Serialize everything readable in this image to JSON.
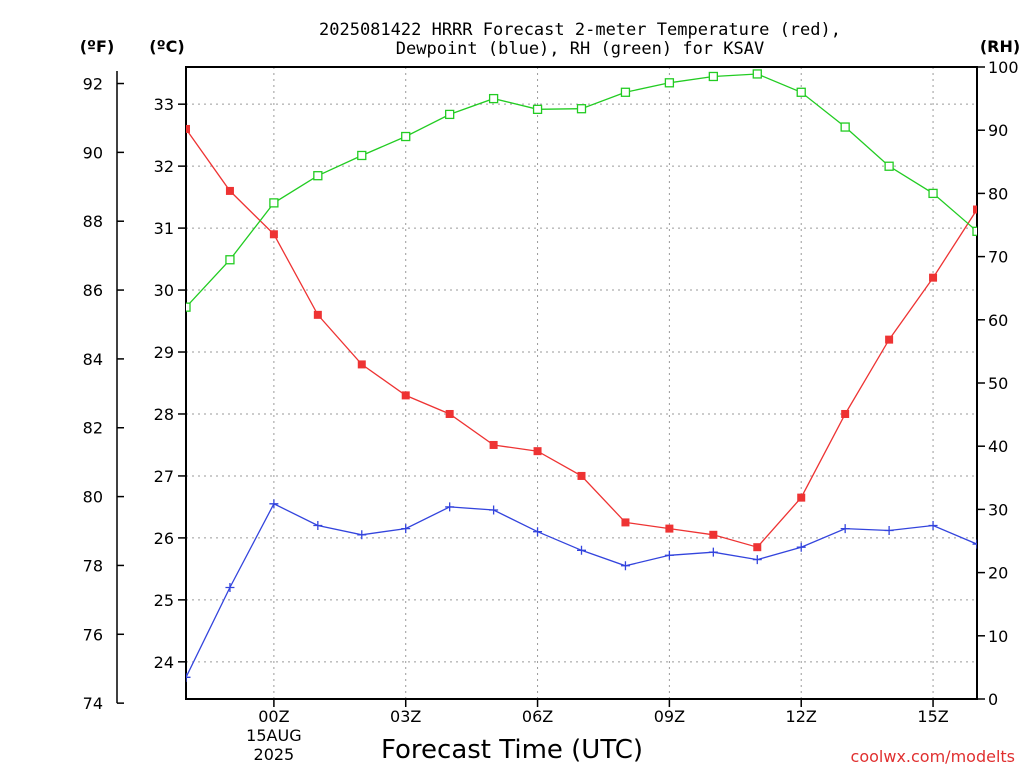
{
  "title_line1": "2025081422 HRRR Forecast 2-meter Temperature (red),",
  "title_line2": "Dewpoint (blue), RH (green) for KSAV",
  "unit_f": "(ºF)",
  "unit_c": "(ºC)",
  "unit_rh": "(RH)",
  "credit": "coolwx.com/modelts",
  "chart_data": {
    "type": "line",
    "title": "2025081422 HRRR Forecast 2-meter Temperature (red), Dewpoint (blue), RH (green) for KSAV",
    "xlabel": "Forecast Time (UTC)",
    "x": [
      -2,
      -1,
      0,
      1,
      2,
      3,
      4,
      5,
      6,
      7,
      8,
      9,
      10,
      11,
      12,
      13,
      14,
      15,
      16
    ],
    "x_ticks": [
      {
        "x": 0,
        "label": "00Z",
        "sub1": "15AUG",
        "sub2": "2025"
      },
      {
        "x": 3,
        "label": "03Z"
      },
      {
        "x": 6,
        "label": "06Z"
      },
      {
        "x": 9,
        "label": "09Z"
      },
      {
        "x": 12,
        "label": "12Z"
      },
      {
        "x": 15,
        "label": "15Z"
      }
    ],
    "xlim": [
      -2,
      16
    ],
    "celsius_axis": {
      "lim": [
        23.4,
        33.6
      ],
      "ticks": [
        24,
        25,
        26,
        27,
        28,
        29,
        30,
        31,
        32,
        33
      ]
    },
    "fahrenheit_axis": {
      "ticks": [
        74,
        76,
        78,
        80,
        82,
        84,
        86,
        88,
        90,
        92
      ]
    },
    "rh_axis": {
      "lim": [
        0,
        100
      ],
      "ticks": [
        0,
        10,
        20,
        30,
        40,
        50,
        60,
        70,
        80,
        90,
        100
      ]
    },
    "grid": true,
    "series": [
      {
        "name": "Temperature",
        "axis": "celsius",
        "color": "#ee3333",
        "marker": "filled-square",
        "values": [
          32.6,
          31.6,
          30.9,
          29.6,
          28.8,
          28.3,
          28.0,
          27.5,
          27.4,
          27.0,
          26.25,
          26.15,
          26.05,
          25.85,
          26.65,
          28.0,
          29.2,
          30.2,
          31.3
        ]
      },
      {
        "name": "Dewpoint",
        "axis": "celsius",
        "color": "#3344dd",
        "marker": "plus",
        "values": [
          23.75,
          25.2,
          26.55,
          26.2,
          26.05,
          26.15,
          26.5,
          26.45,
          26.1,
          25.8,
          25.55,
          25.72,
          25.77,
          25.65,
          25.85,
          26.15,
          26.12,
          26.2,
          25.9
        ]
      },
      {
        "name": "RH",
        "axis": "rh",
        "color": "#22cc22",
        "marker": "open-square",
        "values": [
          62,
          69.5,
          78.5,
          82.8,
          86,
          89,
          92.5,
          95,
          93.3,
          93.4,
          96,
          97.5,
          98.5,
          98.9,
          96,
          90.5,
          84.3,
          80,
          74
        ]
      }
    ]
  }
}
